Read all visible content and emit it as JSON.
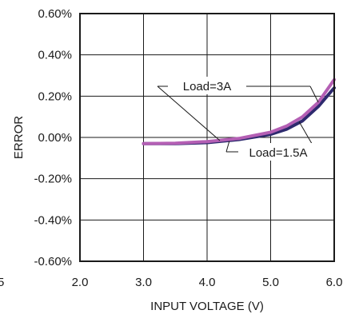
{
  "chart_data": {
    "type": "line",
    "title": "",
    "xlabel": "INPUT VOLTAGE (V)",
    "ylabel": "ERROR",
    "xlim": [
      2.0,
      6.0
    ],
    "ylim": [
      -0.6,
      0.6
    ],
    "x_ticks": [
      2.0,
      3.0,
      4.0,
      5.0,
      6.0
    ],
    "x_tick_labels": [
      "2.0",
      "3.0",
      "4.0",
      "5.0",
      "6.0"
    ],
    "y_ticks": [
      0.6,
      0.4,
      0.2,
      0.0,
      -0.2,
      -0.4,
      -0.6
    ],
    "y_tick_labels": [
      "0.60%",
      "0.40%",
      "0.20%",
      "0.00%",
      "-0.20%",
      "-0.40%",
      "-0.60%"
    ],
    "clipped_left_label": "5",
    "grid": true,
    "series": [
      {
        "name": "Load=1.5A",
        "color": "#2e2a6e",
        "x": [
          3.0,
          3.5,
          4.0,
          4.5,
          5.0,
          5.25,
          5.5,
          5.75,
          6.0
        ],
        "y": [
          -0.03,
          -0.03,
          -0.025,
          -0.01,
          0.015,
          0.04,
          0.08,
          0.15,
          0.24
        ]
      },
      {
        "name": "Load=3A",
        "color": "#b45fb4",
        "x": [
          3.0,
          3.5,
          4.0,
          4.5,
          5.0,
          5.25,
          5.5,
          5.75,
          6.0
        ],
        "y": [
          -0.03,
          -0.028,
          -0.02,
          -0.005,
          0.025,
          0.055,
          0.1,
          0.17,
          0.28
        ]
      }
    ],
    "annotations": [
      {
        "text": "Load=3A",
        "series": "Load=3A"
      },
      {
        "text": "Load=1.5A",
        "series": "Load=1.5A"
      }
    ]
  }
}
